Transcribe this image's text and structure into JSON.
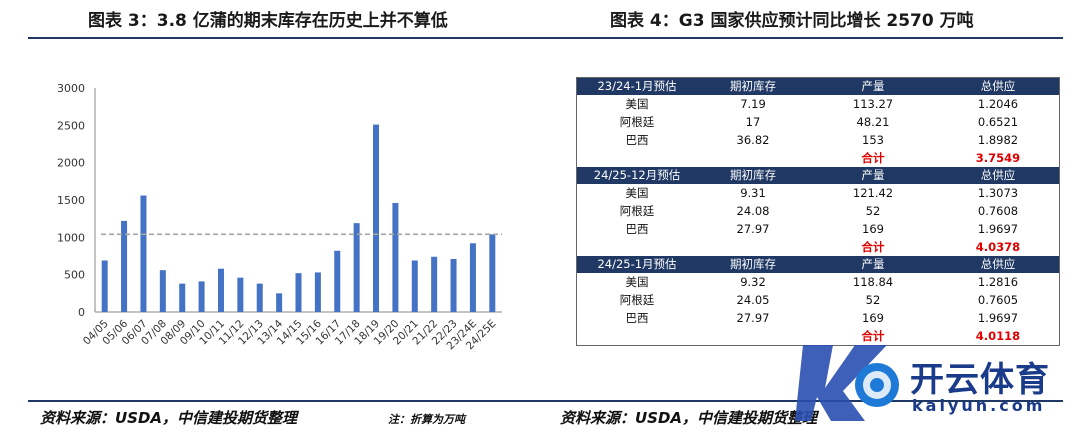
{
  "headers": {
    "left": "图表 3：3.8 亿蒲的期末库存在历史上并不算低",
    "right": "图表 4：G3 国家供应预计同比增长 2570 万吨"
  },
  "sources": {
    "left": "资料来源：USDA，中信建投期货整理",
    "note": "注：折算为万吨",
    "right": "资料来源：USDA，中信建投期货整理"
  },
  "chart_data": {
    "type": "bar",
    "categories": [
      "04/05",
      "05/06",
      "06/07",
      "07/08",
      "08/09",
      "09/10",
      "10/11",
      "11/12",
      "12/13",
      "13/14",
      "14/15",
      "15/16",
      "16/17",
      "17/18",
      "18/19",
      "19/20",
      "20/21",
      "21/22",
      "22/23",
      "23/24E",
      "24/25E"
    ],
    "values": [
      690,
      1220,
      1560,
      560,
      380,
      410,
      580,
      460,
      380,
      250,
      520,
      530,
      820,
      1190,
      2510,
      1460,
      690,
      740,
      710,
      920,
      1040
    ],
    "reference_line": 1040,
    "ylim": [
      0,
      3000
    ],
    "yticks": [
      0,
      500,
      1000,
      1500,
      2000,
      2500,
      3000
    ],
    "colors": {
      "bar": "#4472c4",
      "reference": "#a6a6a6"
    }
  },
  "table": {
    "sections": [
      {
        "header": [
          "23/24-1月预估",
          "期初库存",
          "产量",
          "总供应"
        ],
        "rows": [
          [
            "美国",
            "7.19",
            "113.27",
            "1.2046"
          ],
          [
            "阿根廷",
            "17",
            "48.21",
            "0.6521"
          ],
          [
            "巴西",
            "36.82",
            "153",
            "1.8982"
          ]
        ],
        "total_label": "合计",
        "total_value": "3.7549"
      },
      {
        "header": [
          "24/25-12月预估",
          "期初库存",
          "产量",
          "总供应"
        ],
        "rows": [
          [
            "美国",
            "9.31",
            "121.42",
            "1.3073"
          ],
          [
            "阿根廷",
            "24.08",
            "52",
            "0.7608"
          ],
          [
            "巴西",
            "27.97",
            "169",
            "1.9697"
          ]
        ],
        "total_label": "合计",
        "total_value": "4.0378"
      },
      {
        "header": [
          "24/25-1月预估",
          "期初库存",
          "产量",
          "总供应"
        ],
        "rows": [
          [
            "美国",
            "9.32",
            "118.84",
            "1.2816"
          ],
          [
            "阿根廷",
            "24.05",
            "52",
            "0.7605"
          ],
          [
            "巴西",
            "27.97",
            "169",
            "1.9697"
          ]
        ],
        "total_label": "合计",
        "total_value": "4.0118"
      }
    ]
  },
  "watermark": {
    "brand": "开云体育",
    "domain": "kaiyun.com"
  }
}
